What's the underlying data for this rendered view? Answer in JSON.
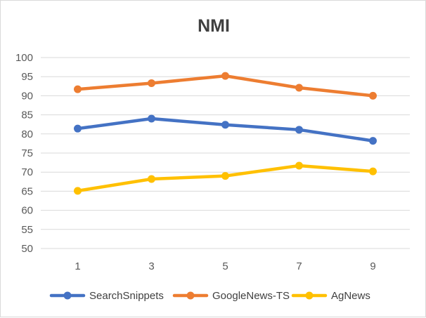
{
  "chart_data": {
    "type": "line",
    "title": "NMI",
    "xlabel": "",
    "ylabel": "",
    "categories": [
      "1",
      "3",
      "5",
      "7",
      "9"
    ],
    "ylim": [
      50,
      100
    ],
    "ytick_step": 5,
    "grid": true,
    "legend_position": "bottom",
    "series": [
      {
        "name": "SearchSnippets",
        "color": "#4472c4",
        "values": [
          81.4,
          84.0,
          82.4,
          81.1,
          78.2
        ]
      },
      {
        "name": "GoogleNews-TS",
        "color": "#ed7d31",
        "values": [
          91.7,
          93.3,
          95.2,
          92.1,
          90.0
        ]
      },
      {
        "name": "AgNews",
        "color": "#ffc000",
        "values": [
          65.1,
          68.2,
          69.0,
          71.7,
          70.2
        ]
      }
    ]
  }
}
